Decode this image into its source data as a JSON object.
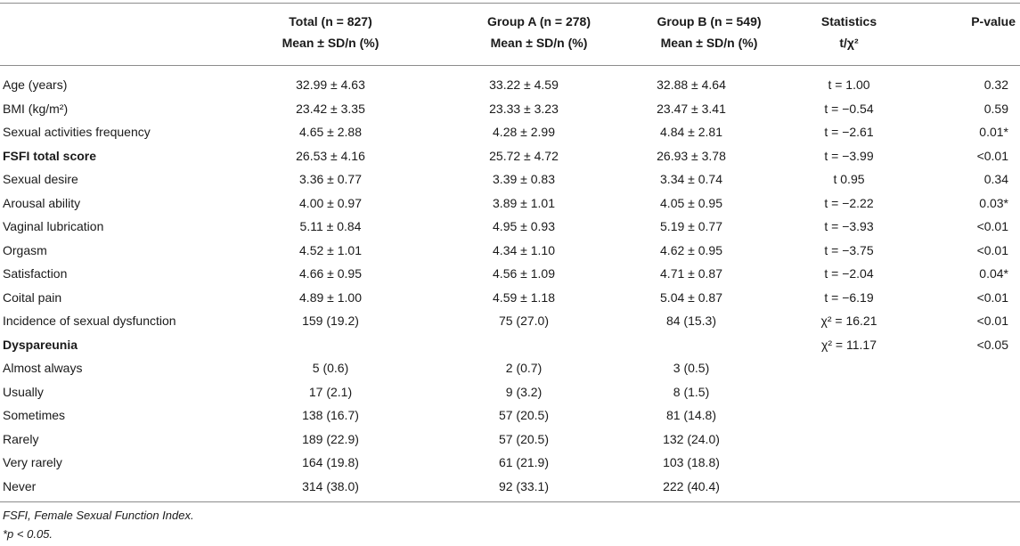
{
  "header": {
    "total": {
      "line1": "Total (n = 827)",
      "line2": "Mean ± SD/n (%)"
    },
    "group_a": {
      "line1": "Group A (n = 278)",
      "line2": "Mean ± SD/n (%)"
    },
    "group_b": {
      "line1": "Group B (n = 549)",
      "line2": "Mean ± SD/n (%)"
    },
    "statistics": {
      "line1": "Statistics",
      "line2": "t/χ²"
    },
    "pvalue": {
      "line1": "P-value"
    }
  },
  "rows": [
    {
      "label": "Age (years)",
      "bold": false,
      "total": "32.99 ± 4.63",
      "group_a": "33.22 ± 4.59",
      "group_b": "32.88 ± 4.64",
      "stat": "t = 1.00",
      "p": "0.32"
    },
    {
      "label": "BMI (kg/m²)",
      "bold": false,
      "total": "23.42 ± 3.35",
      "group_a": "23.33 ± 3.23",
      "group_b": "23.47 ± 3.41",
      "stat": "t = −0.54",
      "p": "0.59"
    },
    {
      "label": "Sexual activities frequency",
      "bold": false,
      "total": "4.65 ± 2.88",
      "group_a": "4.28 ± 2.99",
      "group_b": "4.84 ± 2.81",
      "stat": "t = −2.61",
      "p": "0.01*"
    },
    {
      "label": "FSFI total score",
      "bold": true,
      "total": "26.53 ± 4.16",
      "group_a": "25.72 ± 4.72",
      "group_b": "26.93 ± 3.78",
      "stat": "t = −3.99",
      "p": "<0.01"
    },
    {
      "label": "Sexual desire",
      "bold": false,
      "total": "3.36 ± 0.77",
      "group_a": "3.39 ± 0.83",
      "group_b": "3.34 ± 0.74",
      "stat": "t 0.95",
      "p": "0.34"
    },
    {
      "label": "Arousal ability",
      "bold": false,
      "total": "4.00 ± 0.97",
      "group_a": "3.89 ± 1.01",
      "group_b": "4.05 ± 0.95",
      "stat": "t = −2.22",
      "p": "0.03*"
    },
    {
      "label": "Vaginal lubrication",
      "bold": false,
      "total": "5.11 ± 0.84",
      "group_a": "4.95 ± 0.93",
      "group_b": "5.19 ± 0.77",
      "stat": "t = −3.93",
      "p": "<0.01"
    },
    {
      "label": "Orgasm",
      "bold": false,
      "total": "4.52 ± 1.01",
      "group_a": "4.34 ± 1.10",
      "group_b": "4.62 ± 0.95",
      "stat": "t = −3.75",
      "p": "<0.01"
    },
    {
      "label": "Satisfaction",
      "bold": false,
      "total": "4.66 ± 0.95",
      "group_a": "4.56 ± 1.09",
      "group_b": "4.71 ± 0.87",
      "stat": "t = −2.04",
      "p": "0.04*"
    },
    {
      "label": "Coital pain",
      "bold": false,
      "total": "4.89 ± 1.00",
      "group_a": "4.59 ± 1.18",
      "group_b": "5.04 ± 0.87",
      "stat": "t = −6.19",
      "p": "<0.01"
    },
    {
      "label": "Incidence of sexual dysfunction",
      "bold": false,
      "total": "159 (19.2)",
      "group_a": "75 (27.0)",
      "group_b": "84 (15.3)",
      "stat": "χ² = 16.21",
      "p": "<0.01"
    },
    {
      "label": "Dyspareunia",
      "bold": true,
      "total": "",
      "group_a": "",
      "group_b": "",
      "stat": "χ² = 11.17",
      "p": "<0.05"
    },
    {
      "label": "Almost always",
      "bold": false,
      "total": "5 (0.6)",
      "group_a": "2 (0.7)",
      "group_b": "3 (0.5)",
      "stat": "",
      "p": ""
    },
    {
      "label": "Usually",
      "bold": false,
      "total": "17 (2.1)",
      "group_a": "9 (3.2)",
      "group_b": "8 (1.5)",
      "stat": "",
      "p": ""
    },
    {
      "label": "Sometimes",
      "bold": false,
      "total": "138 (16.7)",
      "group_a": "57 (20.5)",
      "group_b": "81 (14.8)",
      "stat": "",
      "p": ""
    },
    {
      "label": "Rarely",
      "bold": false,
      "total": "189 (22.9)",
      "group_a": "57 (20.5)",
      "group_b": "132 (24.0)",
      "stat": "",
      "p": ""
    },
    {
      "label": "Very rarely",
      "bold": false,
      "total": "164 (19.8)",
      "group_a": "61 (21.9)",
      "group_b": "103 (18.8)",
      "stat": "",
      "p": ""
    },
    {
      "label": "Never",
      "bold": false,
      "total": "314 (38.0)",
      "group_a": "92 (33.1)",
      "group_b": "222 (40.4)",
      "stat": "",
      "p": ""
    }
  ],
  "footnotes": {
    "abbrev": "FSFI, Female Sexual Function Index.",
    "significance": "*p < 0.05."
  }
}
